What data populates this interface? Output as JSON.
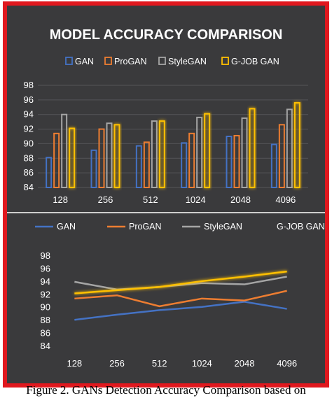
{
  "caption": "Figure 2. GANs Detection Accuracy Comparison based on",
  "colors": {
    "background": "#3a3a3c",
    "frame": "#e0181e",
    "GAN": "#4472c4",
    "ProGAN": "#ed7d31",
    "StyleGAN": "#a5a5a5",
    "G-JOB GAN": "#ffc000"
  },
  "chart_data": [
    {
      "type": "bar",
      "title": "MODEL ACCURACY COMPARISON",
      "categories": [
        "128",
        "256",
        "512",
        "1024",
        "2048",
        "4096"
      ],
      "ylim": [
        84,
        98
      ],
      "yticks": [
        "84",
        "86",
        "88",
        "90",
        "92",
        "94",
        "96",
        "98"
      ],
      "grid": true,
      "legend_position": "top",
      "series": [
        {
          "name": "GAN",
          "values": [
            88.1,
            89.1,
            89.7,
            90.1,
            91.0,
            89.9
          ]
        },
        {
          "name": "ProGAN",
          "values": [
            91.4,
            92.0,
            90.2,
            91.4,
            91.1,
            92.6
          ]
        },
        {
          "name": "StyleGAN",
          "values": [
            94.0,
            92.8,
            93.1,
            93.6,
            93.5,
            94.7
          ]
        },
        {
          "name": "G-JOB GAN",
          "values": [
            92.1,
            92.6,
            93.1,
            94.1,
            94.8,
            95.6
          ]
        }
      ]
    },
    {
      "type": "line",
      "categories": [
        "128",
        "256",
        "512",
        "1024",
        "2048",
        "4096"
      ],
      "ylim": [
        84,
        98
      ],
      "yticks": [
        "84",
        "86",
        "88",
        "90",
        "92",
        "94",
        "96",
        "98"
      ],
      "grid": false,
      "legend_position": "top",
      "series": [
        {
          "name": "GAN",
          "values": [
            88.1,
            88.9,
            89.6,
            90.1,
            90.9,
            89.8
          ]
        },
        {
          "name": "ProGAN",
          "values": [
            91.4,
            91.9,
            90.2,
            91.4,
            91.1,
            92.6
          ]
        },
        {
          "name": "StyleGAN",
          "values": [
            94.0,
            92.8,
            93.2,
            93.8,
            93.6,
            94.8
          ]
        },
        {
          "name": "G-JOB GAN",
          "values": [
            92.2,
            92.7,
            93.2,
            94.1,
            94.8,
            95.6
          ]
        }
      ]
    }
  ]
}
